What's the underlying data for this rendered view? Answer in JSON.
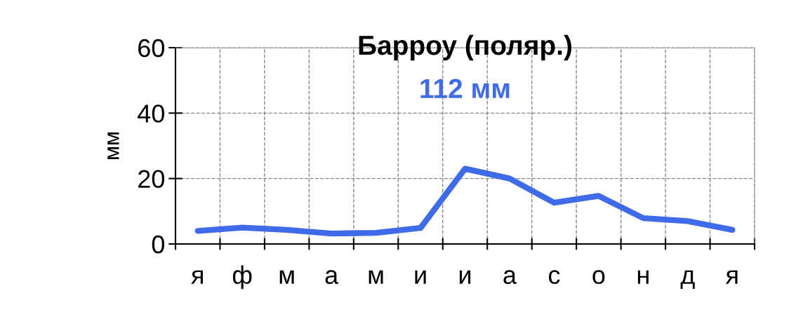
{
  "chart_data": {
    "type": "line",
    "title": "Барроу (поляр.)",
    "ylabel": "мм",
    "annotations": [
      "112 мм"
    ],
    "categories": [
      "я",
      "ф",
      "м",
      "а",
      "м",
      "и",
      "и",
      "а",
      "с",
      "о",
      "н",
      "д",
      "я"
    ],
    "series": [
      {
        "color": "#3f6be8",
        "values": [
          4,
          5,
          4.3,
          3.2,
          3.4,
          4.9,
          23,
          20,
          12.6,
          14.7,
          7.9,
          7,
          4.3
        ]
      }
    ],
    "ylim": [
      0,
      60
    ],
    "yticks": [
      0,
      20,
      40,
      60
    ],
    "grid": true,
    "marker": "none",
    "line_style": "solid"
  }
}
